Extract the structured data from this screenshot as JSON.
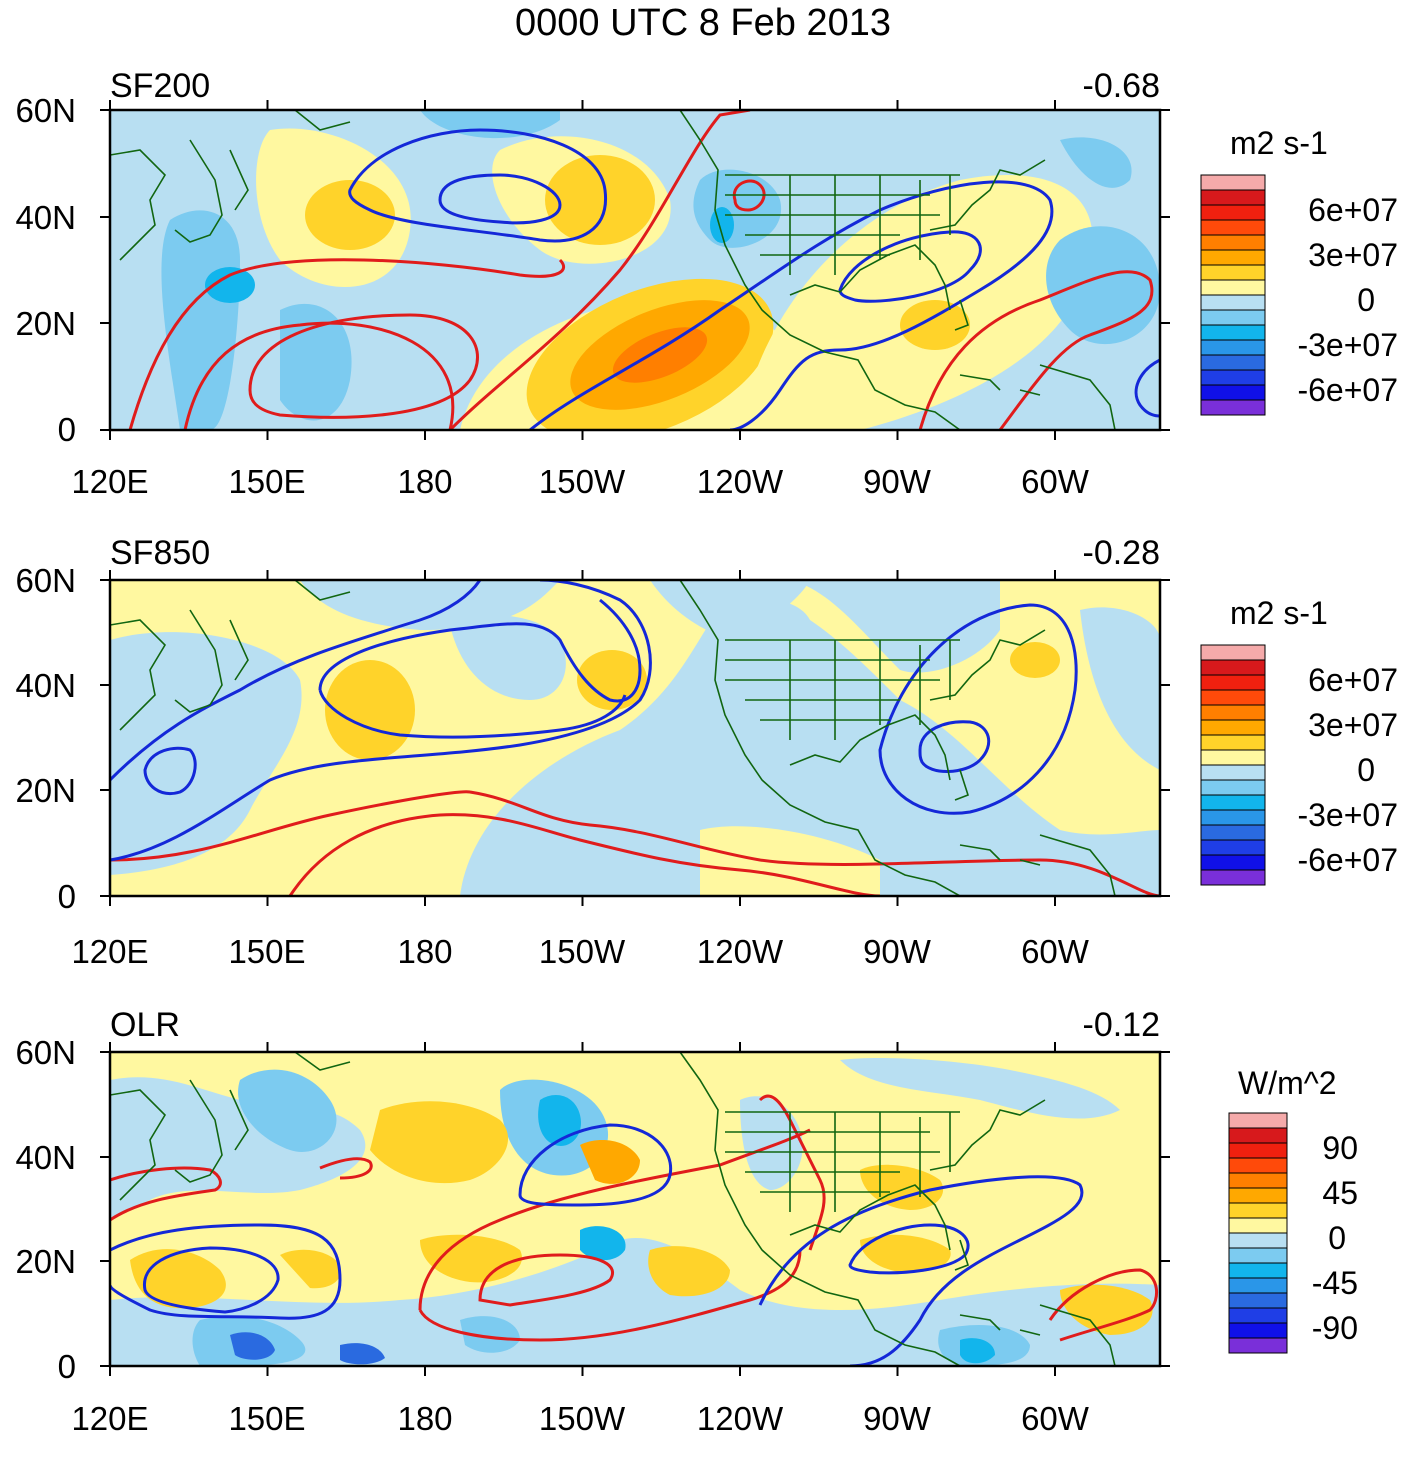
{
  "figure_title": "0000 UTC 8 Feb 2013",
  "axes": {
    "x_ticks": [
      "120E",
      "150E",
      "180",
      "150W",
      "120W",
      "90W",
      "60W"
    ],
    "y_ticks": [
      "60N",
      "40N",
      "20N",
      "0"
    ]
  },
  "panels": [
    {
      "name": "SF200",
      "correlation": "-0.68",
      "unit": "m2 s-1",
      "legend_labels": [
        "6e+07",
        "3e+07",
        "0",
        "-3e+07",
        "-6e+07"
      ]
    },
    {
      "name": "SF850",
      "correlation": "-0.28",
      "unit": "m2 s-1",
      "legend_labels": [
        "6e+07",
        "3e+07",
        "0",
        "-3e+07",
        "-6e+07"
      ]
    },
    {
      "name": "OLR",
      "correlation": "-0.12",
      "unit": "W/m^2",
      "legend_labels": [
        "90",
        "45",
        "0",
        "-45",
        "-90"
      ]
    }
  ],
  "colors": {
    "legend_scale": [
      "#f5aaaa",
      "#d7191c",
      "#f0200f",
      "#ff4a0a",
      "#ff7f00",
      "#ffa800",
      "#ffd32a",
      "#fff8a0",
      "#b8dff2",
      "#7ccbf0",
      "#12b5ec",
      "#2a96e8",
      "#2a6ae0",
      "#1f3ee6",
      "#1010e8",
      "#7a2fd9"
    ],
    "positive_contour": "#e01c1c",
    "negative_contour": "#1428d8",
    "coastline": "#116611"
  }
}
